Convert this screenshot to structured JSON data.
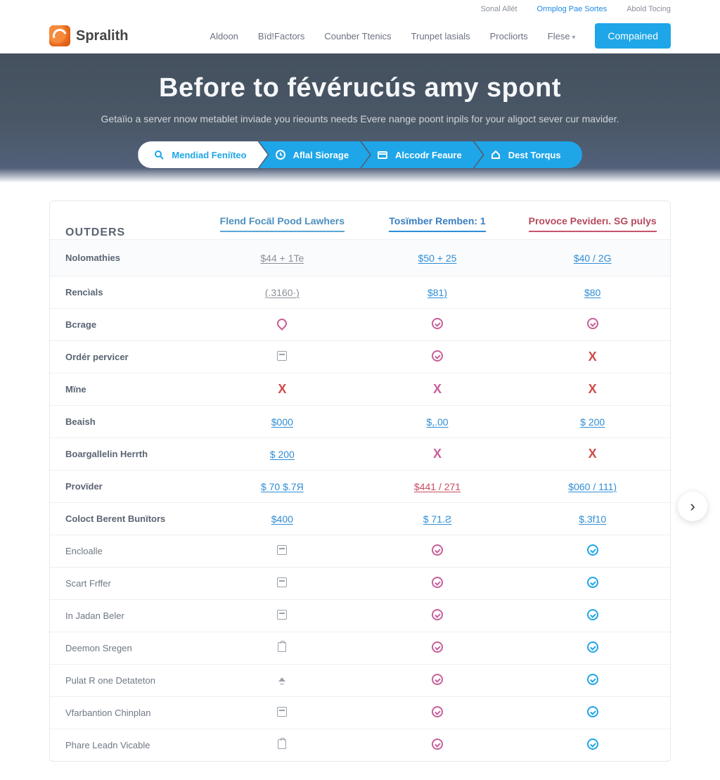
{
  "colors": {
    "accent": "#1fa6e8",
    "hero_bg_from": "#44505e",
    "hero_bg_to": "#52617a",
    "col1": "#4c8fbf",
    "col2": "#3a7ec2",
    "col3": "#b54a5d",
    "pink": "#c85f9a",
    "red": "#d24a4a",
    "gray": "#8a8f99"
  },
  "topmini": {
    "items": [
      {
        "label": "Sonal  Allét",
        "accent": false
      },
      {
        "label": "Ormplog Pae Sortes",
        "accent": true
      },
      {
        "label": "Abold Tocing",
        "accent": false
      }
    ]
  },
  "brand": {
    "name": "Spralith"
  },
  "nav": {
    "items": [
      {
        "label": "Aldoon"
      },
      {
        "label": "Bïd!Factors"
      },
      {
        "label": "Counber Ttenics"
      },
      {
        "label": "Trunpet lasials"
      },
      {
        "label": "Procliorts"
      },
      {
        "label": "Flese",
        "dropdown": true
      }
    ],
    "cta": "Compained"
  },
  "hero": {
    "title": "Before to févérucús amy spont",
    "subtitle": "Getaïio a server nnow metablet inviade you rieounts needs Evere nange poont inpils for your aligoct sever cur mavider.",
    "tabs": [
      {
        "icon": "search",
        "label": "Mendiad Feniïteo"
      },
      {
        "icon": "clock",
        "label": "Aflal Siorage"
      },
      {
        "icon": "card",
        "label": "Alccodr Feаure"
      },
      {
        "icon": "home",
        "label": "Dest Torqus"
      }
    ]
  },
  "table": {
    "category": "OUTDERS",
    "columns": [
      "Flend Focäl Pood Lawhers",
      "Tosïmber Remben: 1",
      "Provoce Peviderı. SG pulуs"
    ],
    "rows": [
      {
        "label": "Nolomathies",
        "cells": [
          {
            "t": "text",
            "val": "$44 + 1Te",
            "cls": "v-gray underline"
          },
          {
            "t": "text",
            "val": "$50 + 25",
            "cls": "v-blue underline"
          },
          {
            "t": "text",
            "val": "$40 / 2G",
            "cls": "v-blue underline"
          }
        ],
        "first": true
      },
      {
        "label": "Rencìals",
        "cells": [
          {
            "t": "text",
            "val": "(.3160·)",
            "cls": "v-gray underline"
          },
          {
            "t": "text",
            "val": "$81)",
            "cls": "v-blue underline"
          },
          {
            "t": "text",
            "val": "$80",
            "cls": "v-blue underline"
          }
        ]
      },
      {
        "label": "Bcrage",
        "cells": [
          {
            "t": "pin"
          },
          {
            "t": "check",
            "c": "pink"
          },
          {
            "t": "check",
            "c": "pink"
          }
        ]
      },
      {
        "label": "Ordér pervicer",
        "cells": [
          {
            "t": "iconbox"
          },
          {
            "t": "check",
            "c": "pink"
          },
          {
            "t": "cross",
            "c": "red"
          }
        ]
      },
      {
        "label": "Mïne",
        "cells": [
          {
            "t": "cross",
            "c": "red"
          },
          {
            "t": "cross",
            "c": "pink"
          },
          {
            "t": "cross",
            "c": "red"
          }
        ]
      },
      {
        "label": "Beaish",
        "cells": [
          {
            "t": "text",
            "val": "$000",
            "cls": "v-blue underline"
          },
          {
            "t": "text",
            "val": "$,.00",
            "cls": "v-blue underline"
          },
          {
            "t": "text",
            "val": "$ 200",
            "cls": "v-blue underline"
          }
        ]
      },
      {
        "label": "Boargallelin Herrth",
        "cells": [
          {
            "t": "text",
            "val": "$ 200",
            "cls": "v-blue underline"
          },
          {
            "t": "cross",
            "c": "pink"
          },
          {
            "t": "cross",
            "c": "red"
          }
        ]
      },
      {
        "label": "Provïder",
        "cells": [
          {
            "t": "text",
            "val": "$ 70  $.7Я",
            "cls": "v-blue underline"
          },
          {
            "t": "text",
            "val": "$441 / 271",
            "cls": "v-red underline"
          },
          {
            "t": "text",
            "val": "$060 / 111)",
            "cls": "v-blue underline"
          }
        ]
      },
      {
        "label": "Coloct Berent Bunïtors",
        "cells": [
          {
            "t": "text",
            "val": "$400",
            "cls": "v-blue underline"
          },
          {
            "t": "text",
            "val": "$ 71.Ƨ",
            "cls": "v-blue underline"
          },
          {
            "t": "text",
            "val": "$.3f10",
            "cls": "v-blue underline"
          }
        ]
      },
      {
        "label": "Encloalle",
        "light": true,
        "cells": [
          {
            "t": "iconbox"
          },
          {
            "t": "check",
            "c": "pink"
          },
          {
            "t": "check",
            "c": "blue"
          }
        ]
      },
      {
        "label": "Scart Frffer",
        "light": true,
        "cells": [
          {
            "t": "iconbox"
          },
          {
            "t": "check",
            "c": "pink"
          },
          {
            "t": "check",
            "c": "blue"
          }
        ]
      },
      {
        "label": "In Jadan Beler",
        "light": true,
        "cells": [
          {
            "t": "iconbox"
          },
          {
            "t": "check",
            "c": "pink"
          },
          {
            "t": "check",
            "c": "blue"
          }
        ]
      },
      {
        "label": "Deemon Sregen",
        "light": true,
        "cells": [
          {
            "t": "clip"
          },
          {
            "t": "check",
            "c": "pink"
          },
          {
            "t": "check",
            "c": "blue"
          }
        ]
      },
      {
        "label": "Pulat R one Detateton",
        "light": true,
        "cells": [
          {
            "t": "up"
          },
          {
            "t": "check",
            "c": "pink"
          },
          {
            "t": "check",
            "c": "blue"
          }
        ]
      },
      {
        "label": "Vfarbantion Chinplan",
        "light": true,
        "cells": [
          {
            "t": "iconbox"
          },
          {
            "t": "check",
            "c": "pink"
          },
          {
            "t": "check",
            "c": "blue"
          }
        ]
      },
      {
        "label": "Phare Leadn Vicable",
        "light": true,
        "cells": [
          {
            "t": "clip"
          },
          {
            "t": "check",
            "c": "pink"
          },
          {
            "t": "check",
            "c": "blue"
          }
        ]
      }
    ]
  }
}
